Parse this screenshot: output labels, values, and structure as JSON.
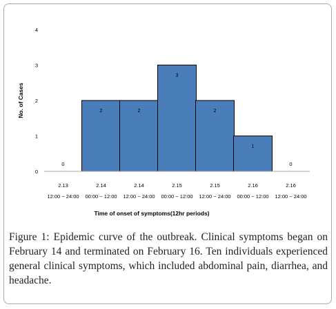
{
  "chart_data": {
    "type": "bar",
    "categories": [
      {
        "date": "2.13",
        "period": "12:00 ~ 24:00"
      },
      {
        "date": "2.14",
        "period": "00:00 ~ 12:00"
      },
      {
        "date": "2.14",
        "period": "12:00 ~ 24:00"
      },
      {
        "date": "2.15",
        "period": "00:00 ~ 12:00"
      },
      {
        "date": "2.15",
        "period": "12:00 ~ 24:00"
      },
      {
        "date": "2.16",
        "period": "00:00 ~ 12:00"
      },
      {
        "date": "2.16",
        "period": "12:00 ~ 24:00"
      }
    ],
    "values": [
      0,
      2,
      2,
      3,
      2,
      1,
      0
    ],
    "data_labels": [
      "0",
      "2",
      "2",
      "3",
      "2",
      "1",
      "0"
    ],
    "ylabel": "No. of Cases",
    "xlabel": "Time of onset of symptoms(12hr periods)",
    "ylim": [
      0,
      4
    ],
    "yticks": [
      "0",
      "1",
      "2",
      "3",
      "4"
    ],
    "bar_color": "#4a7ebb",
    "bar_edge_color": "#000000",
    "grid": false
  },
  "caption": {
    "label": "Figure 1:",
    "text": " Epidemic curve of the outbreak. Clinical symptoms began on February 14 and terminated on February 16. Ten individuals experienced general clinical symptoms, which included abdominal pain, diarrhea, and headache."
  }
}
